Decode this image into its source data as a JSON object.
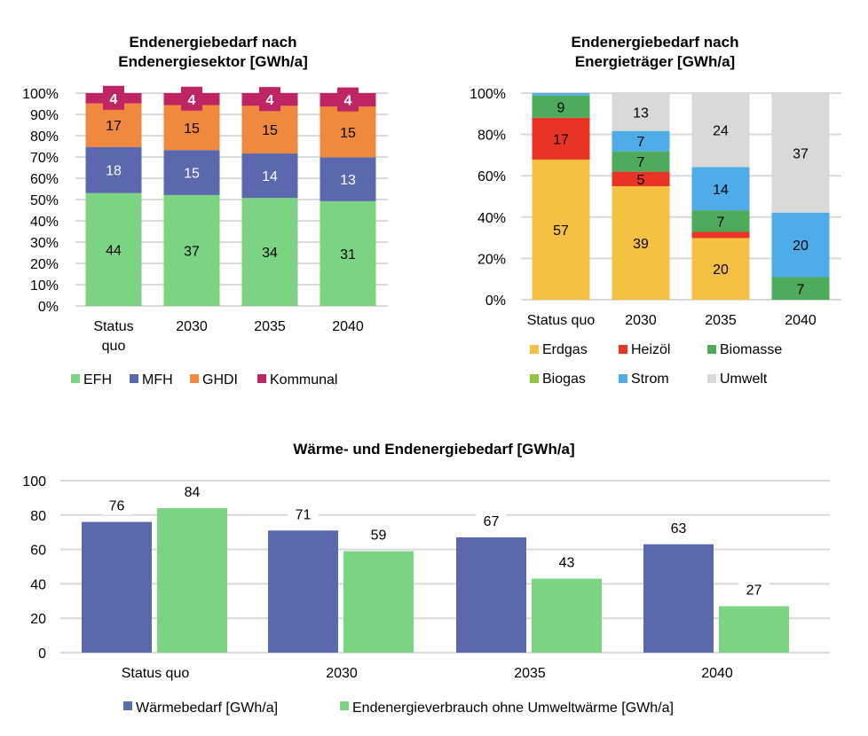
{
  "chart_data": [
    {
      "type": "bar",
      "stacked": true,
      "normalized": true,
      "title_lines": [
        "Endenergiebedarf nach",
        "Endenergiesektor [GWh/a]"
      ],
      "categories": [
        [
          "Status",
          "quo"
        ],
        [
          "2030"
        ],
        [
          "2035"
        ],
        [
          "2040"
        ]
      ],
      "yticks": [
        "0%",
        "10%",
        "20%",
        "30%",
        "40%",
        "50%",
        "60%",
        "70%",
        "80%",
        "90%",
        "100%"
      ],
      "ylim": [
        0,
        100
      ],
      "grid": true,
      "legend": "bottom",
      "series": [
        {
          "name": "EFH",
          "color": "#7AD481",
          "label_color": "#000000",
          "values": [
            44,
            37,
            34,
            31
          ]
        },
        {
          "name": "MFH",
          "color": "#5B68AD",
          "label_color": "#FFFFFF",
          "values": [
            18,
            15,
            14,
            13
          ]
        },
        {
          "name": "GHDI",
          "color": "#F0883E",
          "label_color": "#000000",
          "values": [
            17,
            15,
            15,
            15
          ]
        },
        {
          "name": "Kommunal",
          "color": "#BE2562",
          "label_color": "#FFFFFF",
          "values": [
            4,
            4,
            4,
            4
          ]
        }
      ]
    },
    {
      "type": "bar",
      "stacked": true,
      "normalized": true,
      "title_lines": [
        "Endenergiebedarf nach",
        "Energieträger [GWh/a]"
      ],
      "categories": [
        [
          "Status quo"
        ],
        [
          "2030"
        ],
        [
          "2035"
        ],
        [
          "2040"
        ]
      ],
      "yticks": [
        "0%",
        "20%",
        "40%",
        "60%",
        "80%",
        "100%"
      ],
      "ylim": [
        0,
        100
      ],
      "grid": true,
      "legend": "bottom",
      "series": [
        {
          "name": "Erdgas",
          "color": "#F5C142",
          "values": [
            57,
            39,
            20,
            0
          ],
          "labels": [
            "57",
            "39",
            "20",
            null
          ]
        },
        {
          "name": "Heizöl",
          "color": "#E93425",
          "values": [
            17,
            5,
            2,
            0
          ],
          "labels": [
            "17",
            "5",
            null,
            null
          ]
        },
        {
          "name": "Biomasse",
          "color": "#4FAB5C",
          "values": [
            9,
            7,
            7,
            7
          ],
          "labels": [
            "9",
            "7",
            "7",
            "7"
          ]
        },
        {
          "name": "Biogas",
          "color": "#8DC63F",
          "values": [
            0,
            0,
            0,
            0
          ],
          "labels": [
            null,
            null,
            null,
            null
          ]
        },
        {
          "name": "Strom",
          "color": "#4EADE8",
          "values": [
            1,
            7,
            14,
            20
          ],
          "labels": [
            null,
            "7",
            "14",
            "20"
          ]
        },
        {
          "name": "Umwelt",
          "color": "#D9D9D9",
          "values": [
            0,
            13,
            24,
            37
          ],
          "labels": [
            null,
            "13",
            "24",
            "37"
          ]
        }
      ]
    },
    {
      "type": "bar",
      "title": "Wärme- und Endenergiebedarf [GWh/a]",
      "categories": [
        "Status quo",
        "2030",
        "2035",
        "2040"
      ],
      "yticks": [
        "0",
        "20",
        "40",
        "60",
        "80",
        "100"
      ],
      "ylim": [
        0,
        100
      ],
      "grid": true,
      "legend": "bottom",
      "series": [
        {
          "name": "Wärmebedarf [GWh/a]",
          "color": "#5B68AD",
          "values": [
            76,
            71,
            67,
            63
          ]
        },
        {
          "name": "Endenergieverbrauch ohne Umweltwärme [GWh/a]",
          "color": "#7AD481",
          "values": [
            84,
            59,
            43,
            27
          ]
        }
      ]
    }
  ]
}
